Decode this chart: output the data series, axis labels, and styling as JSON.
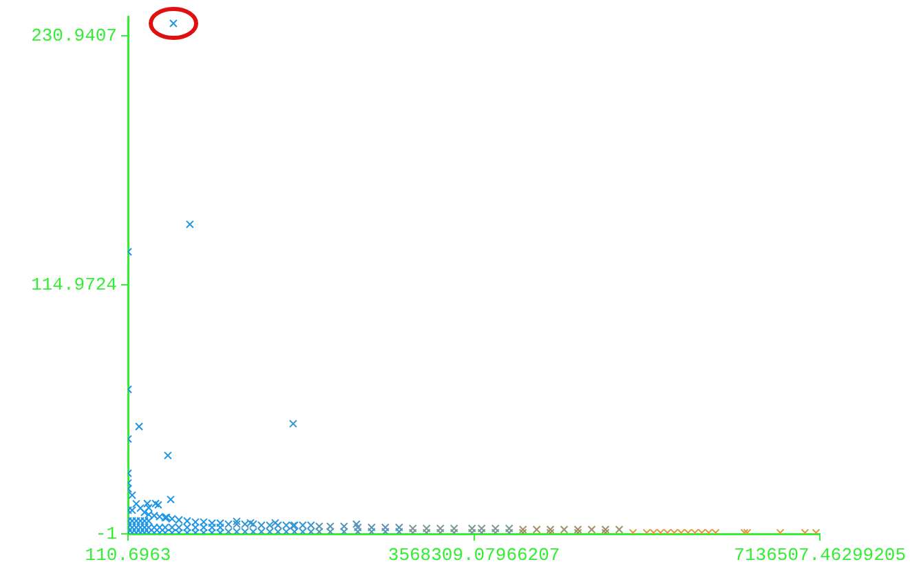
{
  "chart_data": {
    "type": "scatter",
    "marker": "cross",
    "grid": false,
    "legend": false,
    "xlim": [
      110.6963,
      7136507.46299205
    ],
    "ylim": [
      -1,
      240
    ],
    "xticks": [
      110.6963,
      3568309.07966207,
      7136507.46299205
    ],
    "yticks": [
      -1,
      114.9724,
      230.9407
    ],
    "series": [
      {
        "color": "#1e96e6",
        "x": [
          468000,
          638000,
          111,
          111,
          114000,
          111,
          411000,
          111,
          111,
          440000,
          213000,
          312000,
          199000,
          284000,
          397000,
          111,
          42700,
          85000,
          128000,
          170000,
          213000,
          270000,
          326000,
          383000,
          454000,
          525000,
          610000,
          695000,
          780000,
          866000,
          951000,
          111,
          42700,
          85000,
          128000,
          170000,
          213000,
          270000,
          326000,
          383000,
          454000,
          525000,
          610000,
          695000,
          780000,
          866000,
          951000,
          111,
          42700,
          85000,
          128000,
          170000,
          213000,
          270000,
          326000,
          383000,
          454000,
          525000,
          610000,
          695000,
          780000,
          866000,
          951000,
          111,
          42700,
          85000,
          128000,
          170000,
          213000,
          111,
          42700
        ],
        "values": [
          236.8,
          143.2,
          130.4,
          66.3,
          49,
          43.2,
          35.5,
          27.2,
          22.7,
          15,
          11.2,
          12.5,
          13.1,
          13.1,
          6.7,
          20,
          17,
          13,
          11,
          9,
          8,
          7.5,
          7,
          6.5,
          6,
          5.5,
          5,
          4.5,
          4.5,
          4,
          4,
          2,
          2,
          2,
          2,
          2,
          2,
          2,
          2,
          2,
          2,
          2,
          2,
          2,
          2,
          2,
          2,
          -0.5,
          -0.5,
          -0.5,
          -0.5,
          -0.5,
          -0.5,
          -0.5,
          -0.5,
          -0.5,
          -0.5,
          -0.5,
          -0.5,
          -0.5,
          -0.5,
          -0.5,
          -0.5,
          5,
          5,
          5,
          5,
          5,
          5,
          10,
          10
        ]
      },
      {
        "color": "#3596d2",
        "x": [
          1121000,
          1263000,
          1518000,
          1703000,
          1703000,
          1036000,
          1121000,
          1206000,
          1291000,
          1376000,
          1462000,
          1547000,
          1632000,
          1717000,
          1802000,
          1887000,
          1036000,
          1121000,
          1206000,
          1291000,
          1376000,
          1462000,
          1547000,
          1632000,
          1717000,
          1802000,
          1887000
        ],
        "values": [
          4.8,
          4.1,
          4.1,
          2.8,
          50.3,
          3.5,
          3.5,
          3.5,
          3.5,
          3,
          3,
          3,
          3,
          3,
          3,
          3,
          0,
          0,
          0,
          0,
          0,
          0,
          0,
          0,
          0,
          0,
          0
        ]
      },
      {
        "color": "#5594b5",
        "x": [
          2356000,
          1972000,
          2086000,
          2228000,
          2370000,
          2512000,
          2654000,
          2796000,
          1972000,
          2086000,
          2228000,
          2370000,
          2512000,
          2654000,
          2796000
        ],
        "values": [
          3.5,
          2.5,
          2.5,
          2.5,
          2,
          2,
          2,
          2,
          0,
          0,
          0,
          0,
          0,
          0,
          0
        ]
      },
      {
        "color": "#7a9595",
        "x": [
          2937000,
          3079000,
          3221000,
          3363000,
          3548000,
          3647000,
          3789000,
          3931000,
          2937000,
          3079000,
          3221000,
          3363000,
          3548000,
          3647000,
          3789000,
          3931000
        ],
        "values": [
          1.5,
          1.5,
          1.5,
          1.5,
          1.5,
          1.5,
          1.5,
          1.5,
          -0.5,
          -0.5,
          -0.5,
          -0.5,
          -0.5,
          -0.5,
          -0.5,
          -0.5
        ]
      },
      {
        "color": "#a09068",
        "x": [
          4073000,
          4215000,
          4356000,
          4498000,
          4640000,
          4782000,
          4924000,
          5066000,
          4073000,
          4356000,
          4640000,
          4924000
        ],
        "values": [
          1,
          1,
          1,
          1,
          1,
          1,
          1,
          1,
          -0.5,
          -0.5,
          -0.5,
          -0.5
        ]
      },
      {
        "color": "#e09a40",
        "x": [
          5208000,
          5350000,
          5421000,
          5492000,
          5563000,
          5634000,
          5705000,
          5776000,
          5847000,
          5918000,
          5989000,
          6060000,
          6357000,
          6386000,
          6727000,
          6982000,
          7096000
        ],
        "values": [
          -0.5,
          -0.5,
          -0.5,
          -0.5,
          -0.5,
          -0.5,
          -0.5,
          -0.5,
          -0.5,
          -0.5,
          -0.5,
          -0.5,
          -0.5,
          -0.5,
          -0.5,
          -0.5,
          -0.5
        ]
      }
    ]
  }
}
